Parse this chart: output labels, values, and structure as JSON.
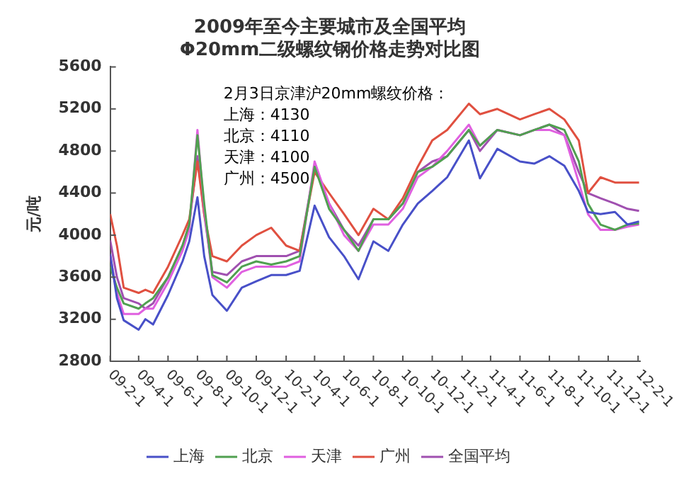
{
  "chart_data": {
    "type": "line",
    "title": "2009年至今主要城市及全国平均",
    "subtitle": "Φ20mm二级螺纹钢价格走势对比图",
    "ylabel": "元/吨",
    "annotations": [
      "2月3日京津沪20mm螺纹价格：",
      "上海：4130",
      "北京：4110",
      "天津：4100",
      "广州：4500"
    ],
    "x": [
      "2009-02-01",
      "2009-02-15",
      "2009-03-01",
      "2009-04-01",
      "2009-04-15",
      "2009-05-01",
      "2009-06-01",
      "2009-07-01",
      "2009-07-15",
      "2009-08-01",
      "2009-08-15",
      "2009-09-01",
      "2009-10-01",
      "2009-11-01",
      "2009-12-01",
      "2010-01-01",
      "2010-02-01",
      "2010-03-01",
      "2010-04-01",
      "2010-05-01",
      "2010-06-01",
      "2010-07-01",
      "2010-08-01",
      "2010-09-01",
      "2010-10-01",
      "2010-11-01",
      "2010-12-01",
      "2011-01-01",
      "2011-02-15",
      "2011-03-10",
      "2011-04-15",
      "2011-06-01",
      "2011-07-01",
      "2011-08-01",
      "2011-09-01",
      "2011-10-01",
      "2011-10-20",
      "2011-11-15",
      "2011-12-15",
      "2012-01-10",
      "2012-02-03"
    ],
    "series": [
      {
        "name": "上海",
        "color": "#4850c8",
        "values": [
          3820,
          3400,
          3190,
          3100,
          3200,
          3150,
          3430,
          3750,
          3940,
          4360,
          3800,
          3430,
          3280,
          3500,
          3560,
          3620,
          3620,
          3660,
          4280,
          3980,
          3800,
          3580,
          3940,
          3850,
          4100,
          4300,
          4420,
          4550,
          4900,
          4540,
          4820,
          4700,
          4680,
          4750,
          4660,
          4420,
          4220,
          4200,
          4220,
          4100,
          4130
        ]
      },
      {
        "name": "北京",
        "color": "#50a050",
        "values": [
          3700,
          3500,
          3350,
          3300,
          3350,
          3400,
          3600,
          3900,
          4100,
          4950,
          4300,
          3620,
          3550,
          3700,
          3750,
          3720,
          3750,
          3800,
          4650,
          4250,
          4050,
          3850,
          4150,
          4150,
          4300,
          4600,
          4650,
          4750,
          5000,
          4850,
          5000,
          4950,
          5000,
          5050,
          5000,
          4700,
          4300,
          4100,
          4050,
          4100,
          4110
        ]
      },
      {
        "name": "天津",
        "color": "#e060e0",
        "values": [
          3800,
          3450,
          3250,
          3250,
          3300,
          3300,
          3550,
          3850,
          4050,
          5000,
          4250,
          3600,
          3500,
          3650,
          3700,
          3700,
          3700,
          3750,
          4700,
          4300,
          4000,
          3850,
          4100,
          4100,
          4250,
          4550,
          4650,
          4800,
          5050,
          4850,
          5000,
          4950,
          5000,
          5000,
          4950,
          4500,
          4200,
          4050,
          4050,
          4080,
          4100
        ]
      },
      {
        "name": "广州",
        "color": "#e05040",
        "values": [
          4200,
          3900,
          3500,
          3450,
          3480,
          3450,
          3700,
          4000,
          4150,
          4700,
          4200,
          3800,
          3750,
          3900,
          4000,
          4070,
          3900,
          3850,
          4600,
          4400,
          4200,
          4000,
          4250,
          4150,
          4350,
          4650,
          4900,
          5000,
          5250,
          5150,
          5200,
          5100,
          5150,
          5200,
          5100,
          4900,
          4400,
          4550,
          4500,
          4500,
          4500
        ]
      },
      {
        "name": "全国平均",
        "color": "#a050b0",
        "values": [
          3950,
          3600,
          3400,
          3350,
          3300,
          3350,
          3600,
          3900,
          4100,
          4750,
          4200,
          3650,
          3620,
          3750,
          3800,
          3800,
          3800,
          3850,
          4650,
          4300,
          4050,
          3900,
          4150,
          4150,
          4300,
          4600,
          4700,
          4750,
          5000,
          4800,
          5000,
          4950,
          5000,
          5050,
          4950,
          4600,
          4400,
          4350,
          4300,
          4250,
          4230
        ]
      }
    ],
    "xlim": [
      "2009-02-01",
      "2012-02-05"
    ],
    "xticks": [
      {
        "value": "2009-02-01",
        "label": "09-2-1"
      },
      {
        "value": "2009-04-01",
        "label": "09-4-1"
      },
      {
        "value": "2009-06-01",
        "label": "09-6-1"
      },
      {
        "value": "2009-08-01",
        "label": "09-8-1"
      },
      {
        "value": "2009-10-01",
        "label": "09-10-1"
      },
      {
        "value": "2009-12-01",
        "label": "09-12-1"
      },
      {
        "value": "2010-02-01",
        "label": "10-2-1"
      },
      {
        "value": "2010-04-01",
        "label": "10-4-1"
      },
      {
        "value": "2010-06-01",
        "label": "10-6-1"
      },
      {
        "value": "2010-08-01",
        "label": "10-8-1"
      },
      {
        "value": "2010-10-01",
        "label": "10-10-1"
      },
      {
        "value": "2010-12-01",
        "label": "10-12-1"
      },
      {
        "value": "2011-02-01",
        "label": "11-2-1"
      },
      {
        "value": "2011-04-01",
        "label": "11-4-1"
      },
      {
        "value": "2011-06-01",
        "label": "11-6-1"
      },
      {
        "value": "2011-08-01",
        "label": "11-8-1"
      },
      {
        "value": "2011-10-01",
        "label": "11-10-1"
      },
      {
        "value": "2011-12-01",
        "label": "11-12-1"
      },
      {
        "value": "2012-02-01",
        "label": "12-2-1"
      }
    ],
    "ylim": [
      2800,
      5600
    ],
    "yticks": [
      2800,
      3200,
      3600,
      4000,
      4400,
      4800,
      5200,
      5600
    ],
    "grid": false,
    "legend": "bottom",
    "marker": "none",
    "line_style": "solid"
  }
}
